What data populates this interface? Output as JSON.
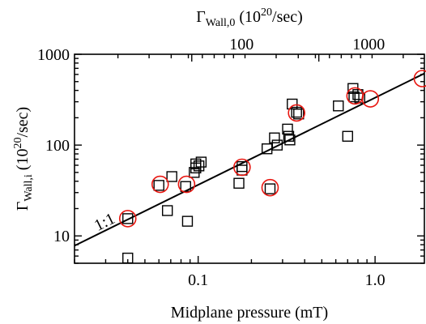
{
  "chart_data": {
    "type": "scatter",
    "title": "",
    "xlabel": "Midplane pressure (mT)",
    "ylabel": "Γ",
    "ylabel_sub": "Wall,i",
    "ylabel_rest": " (10",
    "ylabel_sup": "20",
    "ylabel_unit": "/sec)",
    "top_xlabel": "Γ",
    "top_xlabel_sub": "Wall,0",
    "top_xlabel_rest": " (10",
    "top_xlabel_sup": "20",
    "top_xlabel_unit": "/sec)",
    "x_scale": "log",
    "y_scale": "log",
    "xlim": [
      0.02,
      1.9
    ],
    "ylim": [
      5,
      1000
    ],
    "x_ticks": [
      {
        "value": 0.1,
        "label": "0.1"
      },
      {
        "value": 1.0,
        "label": "1.0"
      }
    ],
    "y_ticks": [
      {
        "value": 10,
        "label": "10"
      },
      {
        "value": 100,
        "label": "100"
      },
      {
        "value": 1000,
        "label": "1000"
      }
    ],
    "top_ticks": [
      {
        "value": 0.176,
        "label": "100"
      },
      {
        "value": 0.92,
        "label": "1000"
      }
    ],
    "grid": false,
    "line_label": "1:1",
    "series": [
      {
        "marker": "square",
        "color": "#000000",
        "points": [
          [
            0.04,
            15.5
          ],
          [
            0.04,
            5.7
          ],
          [
            0.06,
            36
          ],
          [
            0.067,
            19
          ],
          [
            0.071,
            45
          ],
          [
            0.085,
            35
          ],
          [
            0.087,
            14.5
          ],
          [
            0.095,
            50
          ],
          [
            0.097,
            56
          ],
          [
            0.097,
            62
          ],
          [
            0.101,
            59
          ],
          [
            0.104,
            65
          ],
          [
            0.17,
            38
          ],
          [
            0.177,
            53
          ],
          [
            0.177,
            58
          ],
          [
            0.245,
            91
          ],
          [
            0.255,
            33
          ],
          [
            0.27,
            120
          ],
          [
            0.28,
            100
          ],
          [
            0.32,
            150
          ],
          [
            0.325,
            125
          ],
          [
            0.33,
            114
          ],
          [
            0.34,
            283
          ],
          [
            0.36,
            230
          ],
          [
            0.37,
            220
          ],
          [
            0.62,
            270
          ],
          [
            0.7,
            125
          ],
          [
            0.75,
            420
          ],
          [
            0.76,
            340
          ],
          [
            0.8,
            360
          ],
          [
            0.82,
            330
          ]
        ]
      },
      {
        "marker": "circle",
        "color": "#e8150f",
        "points": [
          [
            0.04,
            15.5
          ],
          [
            0.061,
            37
          ],
          [
            0.086,
            37
          ],
          [
            0.177,
            57
          ],
          [
            0.255,
            34
          ],
          [
            0.36,
            226
          ],
          [
            0.77,
            348
          ],
          [
            0.94,
            323
          ],
          [
            1.85,
            540
          ]
        ]
      }
    ],
    "reference_line": {
      "x": [
        0.02,
        1.9
      ],
      "y": [
        7.8,
        615
      ]
    }
  }
}
